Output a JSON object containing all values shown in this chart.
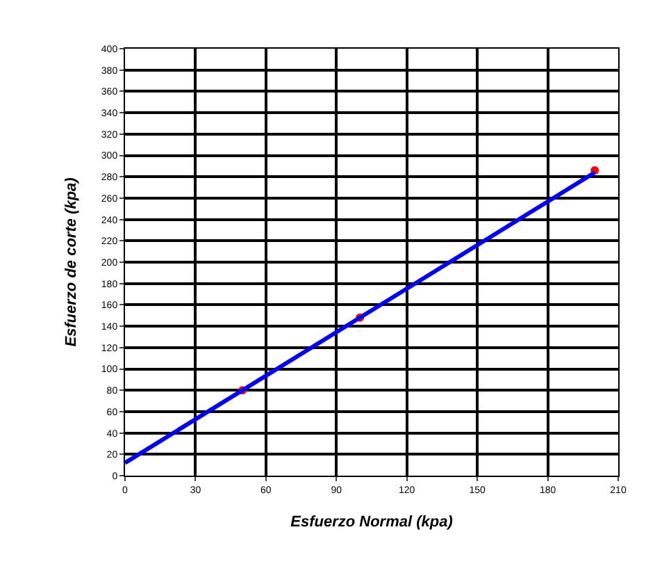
{
  "chart_data": {
    "type": "scatter",
    "xlabel": "Esfuerzo Normal (kpa)",
    "ylabel": "Esfuerzo de corte (kpa)",
    "x": [
      50,
      100,
      200
    ],
    "series": [
      {
        "color": "#ff0000",
        "values": [
          80,
          148,
          286
        ],
        "marker": "circle"
      },
      {
        "type": "line",
        "color": "#0000ff",
        "x": [
          0,
          200
        ],
        "values": [
          12,
          284
        ],
        "marker": "none",
        "line_style": "solid"
      }
    ],
    "xlim": [
      0,
      210
    ],
    "xticks": [
      0,
      30,
      60,
      90,
      120,
      150,
      180,
      210
    ],
    "ylim": [
      0,
      400
    ],
    "yticks": [
      0,
      20,
      40,
      60,
      80,
      100,
      120,
      140,
      160,
      180,
      200,
      220,
      240,
      260,
      280,
      300,
      320,
      340,
      360,
      380,
      400
    ],
    "grid": true
  }
}
